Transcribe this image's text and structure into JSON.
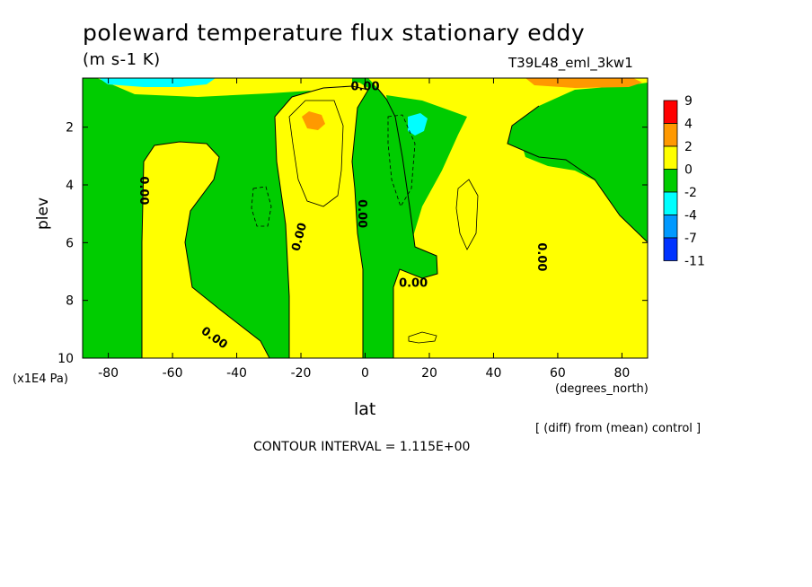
{
  "chart_data": {
    "type": "contour",
    "title": "poleward temperature flux stationary eddy",
    "units": "(m s-1 K)",
    "run_label": "T39L48_eml_3kw1",
    "xlabel": "lat",
    "xunits": "(degrees_north)",
    "ylabel": "plev",
    "yunits": "(x1E4 Pa)",
    "note": "[ (diff) from (mean) control ]",
    "contour_interval": "CONTOUR INTERVAL = 1.115E+00",
    "xlim": [
      -88,
      88
    ],
    "ylim": [
      10,
      0.3
    ],
    "x_ticks": [
      -80,
      -60,
      -40,
      -20,
      0,
      20,
      40,
      60,
      80
    ],
    "x_tick_labels": [
      "-80",
      "-60",
      "-40",
      "-20",
      "0",
      "20",
      "40",
      "60",
      "80"
    ],
    "y_ticks": [
      2,
      4,
      6,
      8,
      10
    ],
    "y_tick_labels": [
      "2",
      "4",
      "6",
      "8",
      "10"
    ],
    "zero_labels": [
      "0.00",
      "0.00",
      "0.00",
      "0.00",
      "0.00",
      "0.00",
      "0.00"
    ],
    "colorbar": {
      "levels": [
        "9",
        "4",
        "2",
        "0",
        "-2",
        "-4",
        "-7",
        "-11"
      ],
      "colors": [
        "#ff0000",
        "#ff9900",
        "#ffff00",
        "#00cc00",
        "#00ffff",
        "#0099ff",
        "#0033ff"
      ]
    },
    "field_colors": {
      "positive_small": "#ffff00",
      "negative_small": "#00cc00",
      "positive_mid": "#ff9900",
      "negative_mid": "#00ffff"
    }
  }
}
